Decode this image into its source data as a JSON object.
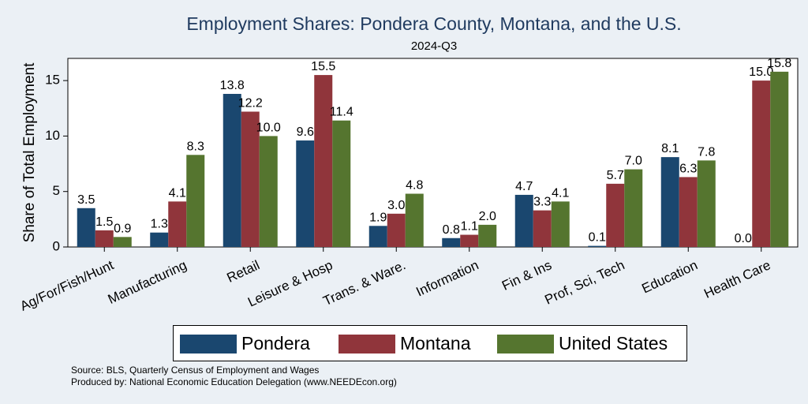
{
  "chart_data": {
    "type": "bar",
    "title": "Employment Shares: Pondera County, Montana, and the U.S.",
    "subtitle": "2024-Q3",
    "ylabel": "Share of Total Employment",
    "xlabel": "",
    "ylim": [
      0,
      17
    ],
    "yticks": [
      0,
      5,
      10,
      15
    ],
    "grid": false,
    "legend_position": "bottom",
    "categories": [
      "Ag/For/Fish/Hunt",
      "Manufacturing",
      "Retail",
      "Leisure & Hosp",
      "Trans. & Ware.",
      "Information",
      "Fin & Ins",
      "Prof, Sci, Tech",
      "Education",
      "Health Care"
    ],
    "series": [
      {
        "name": "Pondera",
        "color": "#1a476f",
        "values": [
          3.5,
          1.3,
          13.8,
          9.6,
          1.9,
          0.8,
          4.7,
          0.1,
          8.1,
          0.0
        ],
        "labels": [
          "3.5",
          "1.3",
          "13.8",
          "9.6",
          "1.9",
          "0.8",
          "4.7",
          "0.1",
          "8.1",
          "0.0"
        ]
      },
      {
        "name": "Montana",
        "color": "#90353b",
        "values": [
          1.5,
          4.1,
          12.2,
          15.5,
          3.0,
          1.1,
          3.3,
          5.7,
          6.3,
          15.0
        ],
        "labels": [
          "1.5",
          "4.1",
          "12.2",
          "15.5",
          "3.0",
          "1.1",
          "3.3",
          "5.7",
          "6.3",
          "15.0"
        ]
      },
      {
        "name": "United States",
        "color": "#55752f",
        "values": [
          0.9,
          8.3,
          10.0,
          11.4,
          4.8,
          2.0,
          4.1,
          7.0,
          7.8,
          15.8
        ],
        "labels": [
          "0.9",
          "8.3",
          "10.0",
          "11.4",
          "4.8",
          "2.0",
          "4.1",
          "7.0",
          "7.8",
          "15.8"
        ]
      }
    ]
  },
  "footer": {
    "source": "Source: BLS, Quarterly Census of Employment and Wages",
    "produced_by": "Produced by: National Economic Education Delegation (www.NEEDEcon.org)"
  }
}
